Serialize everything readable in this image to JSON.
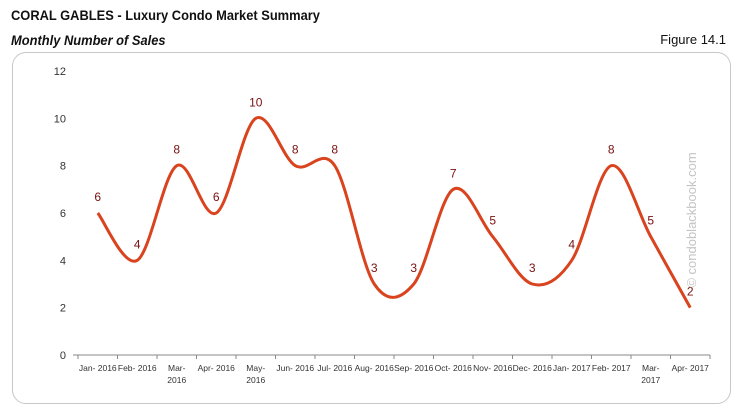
{
  "header": {
    "title": "CORAL GABLES - Luxury Condo Market Summary",
    "subtitle": "Monthly Number of Sales",
    "figure": "Figure 14.1"
  },
  "watermark": "© condoblackbook.com",
  "chart_data": {
    "type": "line",
    "title": "",
    "xlabel": "",
    "ylabel": "",
    "categories": [
      [
        "Jan- 2016"
      ],
      [
        "Feb- 2016"
      ],
      [
        "Mar-",
        "2016"
      ],
      [
        "Apr- 2016"
      ],
      [
        "May-",
        "2016"
      ],
      [
        "Jun- 2016"
      ],
      [
        "Jul- 2016"
      ],
      [
        "Aug- 2016"
      ],
      [
        "Sep- 2016"
      ],
      [
        "Oct- 2016"
      ],
      [
        "Nov- 2016"
      ],
      [
        "Dec- 2016"
      ],
      [
        "Jan- 2017"
      ],
      [
        "Feb- 2017"
      ],
      [
        "Mar-",
        "2017"
      ],
      [
        "Apr- 2017"
      ]
    ],
    "values": [
      6,
      4,
      8,
      6,
      10,
      8,
      8,
      3,
      3,
      7,
      5,
      3,
      4,
      8,
      5,
      2
    ],
    "ylim": [
      0,
      12
    ],
    "yticks": [
      0,
      2,
      4,
      6,
      8,
      10,
      12
    ],
    "smooth": true,
    "grid": false,
    "line_color": "#d9431e",
    "label_color": "#7a1010"
  }
}
